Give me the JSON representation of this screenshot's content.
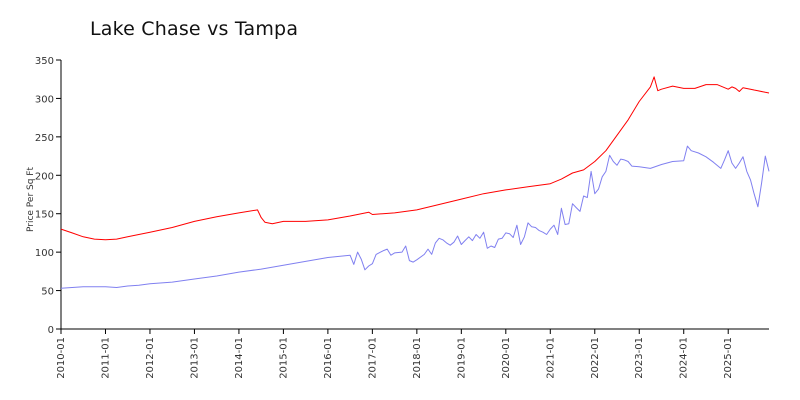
{
  "chart_data": {
    "type": "line",
    "title": "Lake Chase vs Tampa",
    "xlabel": "",
    "ylabel": "Price Per Sq Ft",
    "ylim": [
      0,
      350
    ],
    "yticks": [
      0,
      50,
      100,
      150,
      200,
      250,
      300,
      350
    ],
    "xlim": [
      2010.0,
      2025.917
    ],
    "xticks": [
      "2010-01",
      "2011-01",
      "2012-01",
      "2013-01",
      "2014-01",
      "2015-01",
      "2016-01",
      "2017-01",
      "2018-01",
      "2019-01",
      "2020-01",
      "2021-01",
      "2022-01",
      "2023-01",
      "2024-01",
      "2025-01"
    ],
    "grid": false,
    "legend": "none",
    "series": [
      {
        "name": "Tampa",
        "color": "#ff0000",
        "points": [
          [
            2010.0,
            130
          ],
          [
            2010.25,
            125
          ],
          [
            2010.5,
            120
          ],
          [
            2010.75,
            117
          ],
          [
            2011.0,
            116
          ],
          [
            2011.25,
            117
          ],
          [
            2011.5,
            120
          ],
          [
            2011.75,
            123
          ],
          [
            2012.0,
            126
          ],
          [
            2012.5,
            132
          ],
          [
            2013.0,
            140
          ],
          [
            2013.5,
            146
          ],
          [
            2014.0,
            151
          ],
          [
            2014.417,
            155
          ],
          [
            2014.5,
            145
          ],
          [
            2014.583,
            139
          ],
          [
            2014.75,
            137
          ],
          [
            2015.0,
            140
          ],
          [
            2015.5,
            140
          ],
          [
            2016.0,
            142
          ],
          [
            2016.5,
            147
          ],
          [
            2016.917,
            152
          ],
          [
            2017.0,
            149
          ],
          [
            2017.5,
            151
          ],
          [
            2018.0,
            155
          ],
          [
            2018.5,
            162
          ],
          [
            2019.0,
            169
          ],
          [
            2019.5,
            176
          ],
          [
            2020.0,
            181
          ],
          [
            2020.5,
            185
          ],
          [
            2021.0,
            189
          ],
          [
            2021.25,
            195
          ],
          [
            2021.5,
            203
          ],
          [
            2021.75,
            207
          ],
          [
            2022.0,
            218
          ],
          [
            2022.25,
            232
          ],
          [
            2022.5,
            252
          ],
          [
            2022.75,
            272
          ],
          [
            2023.0,
            296
          ],
          [
            2023.25,
            315
          ],
          [
            2023.333,
            328
          ],
          [
            2023.417,
            310
          ],
          [
            2023.5,
            312
          ],
          [
            2023.75,
            316
          ],
          [
            2024.0,
            313
          ],
          [
            2024.25,
            313
          ],
          [
            2024.5,
            318
          ],
          [
            2024.75,
            318
          ],
          [
            2025.0,
            312
          ],
          [
            2025.083,
            315
          ],
          [
            2025.167,
            313
          ],
          [
            2025.25,
            309
          ],
          [
            2025.333,
            314
          ],
          [
            2025.5,
            312
          ],
          [
            2025.583,
            311
          ],
          [
            2025.667,
            310
          ],
          [
            2025.833,
            308
          ],
          [
            2025.917,
            307
          ]
        ]
      },
      {
        "name": "Lake Chase",
        "color": "#8080f0",
        "points": [
          [
            2010.0,
            53
          ],
          [
            2010.5,
            55
          ],
          [
            2011.0,
            55
          ],
          [
            2011.25,
            54
          ],
          [
            2011.5,
            56
          ],
          [
            2011.75,
            57
          ],
          [
            2012.0,
            59
          ],
          [
            2012.5,
            61
          ],
          [
            2013.0,
            65
          ],
          [
            2013.5,
            69
          ],
          [
            2014.0,
            74
          ],
          [
            2014.5,
            78
          ],
          [
            2015.0,
            83
          ],
          [
            2015.5,
            88
          ],
          [
            2016.0,
            93
          ],
          [
            2016.333,
            95
          ],
          [
            2016.5,
            96
          ],
          [
            2016.583,
            84
          ],
          [
            2016.667,
            100
          ],
          [
            2016.75,
            91
          ],
          [
            2016.833,
            77
          ],
          [
            2016.917,
            82
          ],
          [
            2017.0,
            85
          ],
          [
            2017.083,
            97
          ],
          [
            2017.25,
            102
          ],
          [
            2017.333,
            104
          ],
          [
            2017.417,
            96
          ],
          [
            2017.5,
            99
          ],
          [
            2017.667,
            100
          ],
          [
            2017.75,
            108
          ],
          [
            2017.833,
            89
          ],
          [
            2017.917,
            87
          ],
          [
            2018.0,
            90
          ],
          [
            2018.167,
            97
          ],
          [
            2018.25,
            104
          ],
          [
            2018.333,
            97
          ],
          [
            2018.417,
            112
          ],
          [
            2018.5,
            118
          ],
          [
            2018.583,
            116
          ],
          [
            2018.667,
            112
          ],
          [
            2018.75,
            109
          ],
          [
            2018.833,
            113
          ],
          [
            2018.917,
            121
          ],
          [
            2019.0,
            110
          ],
          [
            2019.083,
            115
          ],
          [
            2019.167,
            120
          ],
          [
            2019.25,
            115
          ],
          [
            2019.333,
            123
          ],
          [
            2019.417,
            118
          ],
          [
            2019.5,
            126
          ],
          [
            2019.583,
            105
          ],
          [
            2019.667,
            108
          ],
          [
            2019.75,
            106
          ],
          [
            2019.833,
            117
          ],
          [
            2019.917,
            118
          ],
          [
            2020.0,
            125
          ],
          [
            2020.083,
            124
          ],
          [
            2020.167,
            119
          ],
          [
            2020.25,
            135
          ],
          [
            2020.333,
            110
          ],
          [
            2020.417,
            120
          ],
          [
            2020.5,
            138
          ],
          [
            2020.583,
            133
          ],
          [
            2020.667,
            132
          ],
          [
            2020.75,
            128
          ],
          [
            2020.833,
            126
          ],
          [
            2020.917,
            123
          ],
          [
            2021.0,
            130
          ],
          [
            2021.083,
            135
          ],
          [
            2021.167,
            123
          ],
          [
            2021.25,
            157
          ],
          [
            2021.333,
            136
          ],
          [
            2021.417,
            137
          ],
          [
            2021.5,
            163
          ],
          [
            2021.583,
            158
          ],
          [
            2021.667,
            153
          ],
          [
            2021.75,
            173
          ],
          [
            2021.833,
            171
          ],
          [
            2021.917,
            205
          ],
          [
            2022.0,
            176
          ],
          [
            2022.083,
            182
          ],
          [
            2022.167,
            198
          ],
          [
            2022.25,
            205
          ],
          [
            2022.333,
            226
          ],
          [
            2022.417,
            218
          ],
          [
            2022.5,
            213
          ],
          [
            2022.583,
            221
          ],
          [
            2022.667,
            220
          ],
          [
            2022.75,
            218
          ],
          [
            2022.833,
            212
          ],
          [
            2023.0,
            211
          ],
          [
            2023.25,
            209
          ],
          [
            2023.5,
            214
          ],
          [
            2023.75,
            218
          ],
          [
            2024.0,
            219
          ],
          [
            2024.083,
            238
          ],
          [
            2024.167,
            232
          ],
          [
            2024.333,
            229
          ],
          [
            2024.5,
            224
          ],
          [
            2024.667,
            217
          ],
          [
            2024.833,
            209
          ],
          [
            2024.917,
            220
          ],
          [
            2025.0,
            232
          ],
          [
            2025.083,
            216
          ],
          [
            2025.167,
            209
          ],
          [
            2025.25,
            216
          ],
          [
            2025.333,
            224
          ],
          [
            2025.417,
            205
          ],
          [
            2025.5,
            194
          ],
          [
            2025.583,
            176
          ],
          [
            2025.667,
            159
          ],
          [
            2025.75,
            190
          ],
          [
            2025.833,
            225
          ],
          [
            2025.917,
            205
          ]
        ]
      }
    ]
  }
}
